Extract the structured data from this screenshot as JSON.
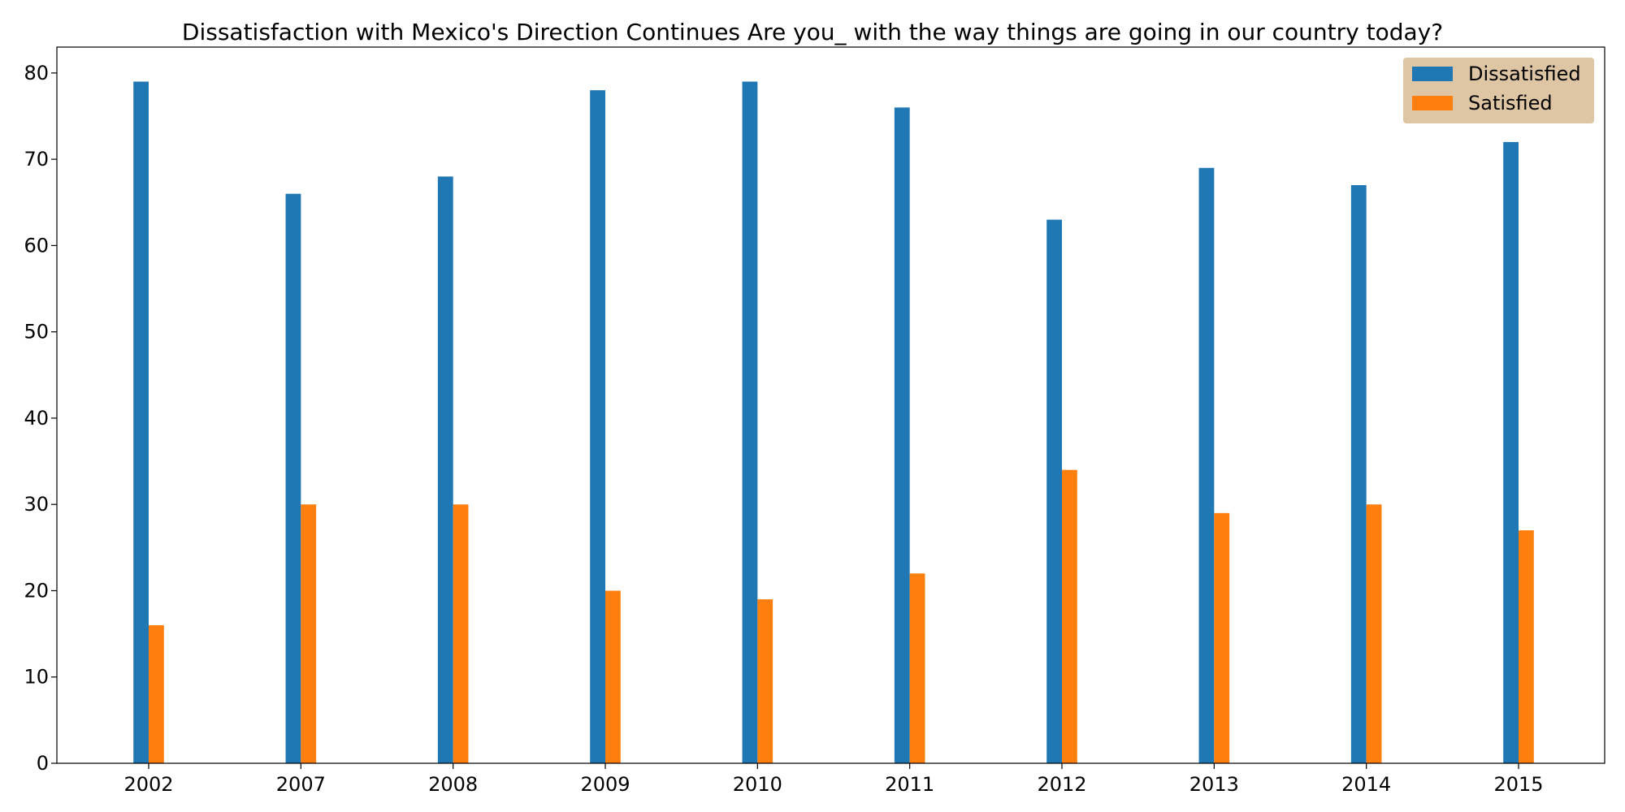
{
  "chart_data": {
    "type": "bar",
    "title": "Dissatisfaction with Mexico's Direction Continues Are you_ with the way things are going in our country today?",
    "xlabel": "",
    "ylabel": "",
    "categories": [
      "2002",
      "2007",
      "2008",
      "2009",
      "2010",
      "2011",
      "2012",
      "2013",
      "2014",
      "2015"
    ],
    "series": [
      {
        "name": "Dissatisfied",
        "color": "#1f77b4",
        "values": [
          79,
          66,
          68,
          78,
          79,
          76,
          63,
          69,
          67,
          72
        ]
      },
      {
        "name": "Satisfied",
        "color": "#ff7f0e",
        "values": [
          16,
          30,
          30,
          20,
          19,
          22,
          34,
          29,
          30,
          27
        ]
      }
    ],
    "ylim": [
      0,
      83
    ],
    "yticks": [
      0,
      10,
      20,
      30,
      40,
      50,
      60,
      70,
      80
    ],
    "grid": false,
    "legend": {
      "position": "top-right",
      "background": "#dcc3a0"
    }
  }
}
